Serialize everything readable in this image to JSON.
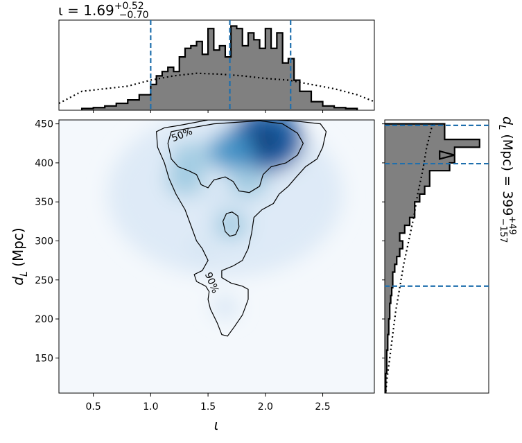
{
  "chart_data": [
    {
      "type": "line",
      "panel": "top-marginal",
      "title_main": "ι = 1.69",
      "title_sup": "+0.52",
      "title_sub": "−0.70",
      "xlim": [
        0.2,
        2.95
      ],
      "quantile_lines": [
        1.0,
        1.69,
        2.22
      ],
      "series": [
        {
          "style": "filled-step",
          "x": [
            0.4,
            0.5,
            0.6,
            0.7,
            0.8,
            0.9,
            1.0,
            1.05,
            1.1,
            1.15,
            1.2,
            1.25,
            1.3,
            1.35,
            1.4,
            1.45,
            1.5,
            1.55,
            1.6,
            1.65,
            1.7,
            1.75,
            1.8,
            1.85,
            1.9,
            1.95,
            2.0,
            2.05,
            2.1,
            2.15,
            2.2,
            2.25,
            2.3,
            2.4,
            2.5,
            2.6,
            2.7
          ],
          "values": [
            0.02,
            0.03,
            0.05,
            0.08,
            0.12,
            0.18,
            0.3,
            0.4,
            0.45,
            0.5,
            0.45,
            0.62,
            0.72,
            0.75,
            0.8,
            0.65,
            0.95,
            0.7,
            0.75,
            0.62,
            0.98,
            0.95,
            0.75,
            0.9,
            0.82,
            0.72,
            0.95,
            0.72,
            0.9,
            0.55,
            0.6,
            0.35,
            0.22,
            0.1,
            0.05,
            0.03,
            0.02
          ]
        },
        {
          "style": "dotted",
          "x": [
            0.2,
            0.4,
            0.6,
            0.8,
            1.0,
            1.2,
            1.4,
            1.6,
            1.8,
            2.0,
            2.2,
            2.4,
            2.6,
            2.8,
            2.95
          ],
          "values": [
            0.08,
            0.22,
            0.25,
            0.28,
            0.35,
            0.4,
            0.43,
            0.42,
            0.4,
            0.37,
            0.35,
            0.3,
            0.25,
            0.18,
            0.1
          ]
        }
      ]
    },
    {
      "type": "heatmap",
      "panel": "joint",
      "xlabel": "ι",
      "ylabel": "d",
      "ylabel_sub": "L",
      "ylabel_tail": " (Mpc)",
      "xlim": [
        0.2,
        2.95
      ],
      "ylim": [
        105,
        455
      ],
      "xticks": [
        "0.5",
        "1.0",
        "1.5",
        "2.0",
        "2.5"
      ],
      "yticks": [
        "150",
        "200",
        "250",
        "300",
        "350",
        "400",
        "450"
      ],
      "contour_labels": [
        "50%",
        "90%"
      ],
      "density_peaks": [
        {
          "x": 2.0,
          "y": 428,
          "w": 1.0
        },
        {
          "x": 1.7,
          "y": 415,
          "w": 0.45
        },
        {
          "x": 1.35,
          "y": 405,
          "w": 0.35
        },
        {
          "x": 1.3,
          "y": 378,
          "w": 0.3
        },
        {
          "x": 1.85,
          "y": 375,
          "w": 0.3
        },
        {
          "x": 1.6,
          "y": 355,
          "w": 0.2
        },
        {
          "x": 1.7,
          "y": 320,
          "w": 0.22
        },
        {
          "x": 1.45,
          "y": 290,
          "w": 0.1
        },
        {
          "x": 1.65,
          "y": 215,
          "w": 0.08
        }
      ]
    },
    {
      "type": "line",
      "panel": "right-marginal",
      "title_main": "d",
      "title_sub_L": "L",
      "title_tail": " (Mpc) = 399",
      "title_sup": "+49",
      "title_sub": "−157",
      "ylim": [
        105,
        455
      ],
      "quantile_lines": [
        448,
        399,
        242
      ],
      "series": [
        {
          "style": "filled-step",
          "y": [
            450,
            440,
            430,
            420,
            415,
            410,
            400,
            390,
            380,
            370,
            360,
            350,
            340,
            330,
            320,
            310,
            300,
            290,
            280,
            270,
            260,
            250,
            240,
            230,
            220,
            210,
            200,
            190,
            180,
            170,
            160,
            150,
            140,
            130,
            120,
            110
          ],
          "values": [
            0.6,
            0.6,
            0.95,
            0.7,
            0.55,
            0.7,
            0.65,
            0.45,
            0.45,
            0.4,
            0.35,
            0.3,
            0.3,
            0.25,
            0.2,
            0.15,
            0.18,
            0.15,
            0.12,
            0.1,
            0.08,
            0.08,
            0.07,
            0.06,
            0.05,
            0.05,
            0.04,
            0.04,
            0.03,
            0.03,
            0.02,
            0.02,
            0.02,
            0.01,
            0.01,
            0.01
          ]
        },
        {
          "style": "dotted",
          "y": [
            450,
            420,
            390,
            360,
            330,
            300,
            270,
            240,
            210,
            180,
            150,
            120,
            105
          ],
          "values": [
            0.48,
            0.42,
            0.38,
            0.33,
            0.29,
            0.24,
            0.19,
            0.15,
            0.11,
            0.08,
            0.05,
            0.02,
            0.01
          ]
        }
      ]
    }
  ]
}
